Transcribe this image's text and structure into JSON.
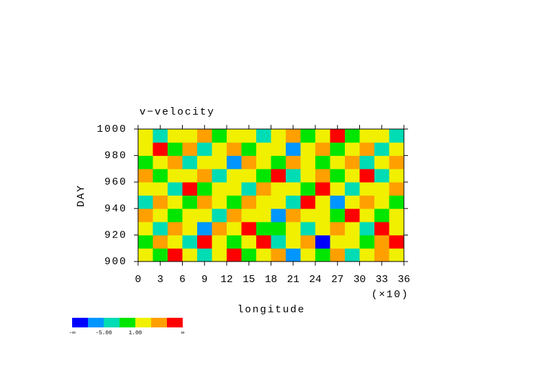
{
  "chart_data": {
    "type": "heatmap",
    "title": "v−velocity",
    "x_label": "longitude",
    "x_multiplier": "(×10)",
    "y_label": "DAY",
    "xlim": [
      0,
      36
    ],
    "xticks": [
      0,
      3,
      6,
      9,
      12,
      15,
      18,
      21,
      24,
      27,
      30,
      33,
      36
    ],
    "ylim": [
      900,
      1000
    ],
    "yticks": [
      900,
      920,
      940,
      960,
      980,
      1000
    ],
    "levels": [
      -8,
      -5,
      -2,
      1,
      4,
      7
    ],
    "colors": [
      "#0000ff",
      "#0096ff",
      "#00dcb4",
      "#00e600",
      "#f0f000",
      "#ffa000",
      "#ff0000"
    ],
    "colorbar_ticks": [
      {
        "value": -5,
        "label": "-5.00"
      },
      {
        "value": 1,
        "label": "1.00"
      }
    ],
    "colorbar_end_labels": [
      "-∞",
      "∞"
    ],
    "z": [
      [
        3,
        -2,
        8,
        1,
        -4,
        2,
        9,
        -1,
        3,
        5,
        -6,
        2,
        0,
        4,
        -3,
        1,
        6,
        2
      ],
      [
        -1,
        4,
        2,
        -5,
        7,
        1,
        -2,
        3,
        10,
        -3,
        2,
        5,
        -9,
        1,
        3,
        -2,
        4,
        8
      ],
      [
        2,
        -3,
        5,
        1,
        -7,
        4,
        2,
        8,
        -1,
        0,
        3,
        -5,
        2,
        6,
        1,
        -3,
        9,
        1
      ],
      [
        5,
        1,
        -2,
        3,
        2,
        -4,
        6,
        1,
        3,
        -8,
        5,
        1,
        2,
        -2,
        7,
        3,
        -1,
        2
      ],
      [
        -3,
        6,
        1,
        -1,
        4,
        2,
        -2,
        5,
        1,
        3,
        -4,
        9,
        1,
        -6,
        2,
        4,
        1,
        -2
      ],
      [
        1,
        2,
        -4,
        7,
        -1,
        3,
        1,
        -3,
        6,
        2,
        1,
        -2,
        8,
        3,
        -5,
        1,
        2,
        5
      ],
      [
        4,
        -2,
        1,
        2,
        5,
        -5,
        3,
        2,
        -1,
        7,
        -3,
        1,
        4,
        -2,
        3,
        9,
        -4,
        1
      ],
      [
        -2,
        3,
        6,
        -3,
        1,
        2,
        -6,
        4,
        2,
        -1,
        5,
        3,
        -2,
        1,
        6,
        -3,
        2,
        4
      ],
      [
        2,
        8,
        -1,
        4,
        -3,
        1,
        5,
        -2,
        3,
        1,
        -7,
        2,
        6,
        -1,
        2,
        4,
        -5,
        3
      ],
      [
        1,
        -4,
        3,
        2,
        6,
        -2,
        1,
        3,
        -5,
        2,
        4,
        -1,
        3,
        7,
        -2,
        1,
        3,
        -3
      ]
    ]
  }
}
